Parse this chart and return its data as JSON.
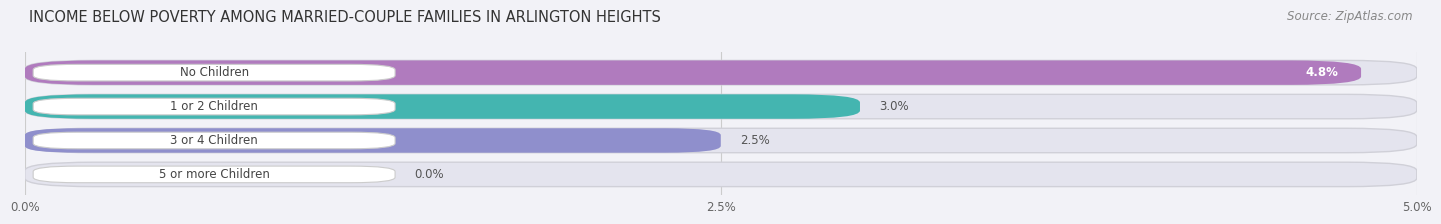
{
  "title": "INCOME BELOW POVERTY AMONG MARRIED-COUPLE FAMILIES IN ARLINGTON HEIGHTS",
  "source": "Source: ZipAtlas.com",
  "categories": [
    "No Children",
    "1 or 2 Children",
    "3 or 4 Children",
    "5 or more Children"
  ],
  "values": [
    4.8,
    3.0,
    2.5,
    0.0
  ],
  "bar_colors": [
    "#b07bbe",
    "#44b5b0",
    "#8f8fcc",
    "#f4a0b8"
  ],
  "xlim": [
    0,
    5.0
  ],
  "xticks": [
    0.0,
    2.5,
    5.0
  ],
  "xticklabels": [
    "0.0%",
    "2.5%",
    "5.0%"
  ],
  "background_color": "#f2f2f7",
  "bar_background": "#e4e4ee",
  "title_fontsize": 10.5,
  "source_fontsize": 8.5,
  "tick_fontsize": 8.5,
  "label_fontsize": 8.5,
  "value_fontsize": 8.5
}
